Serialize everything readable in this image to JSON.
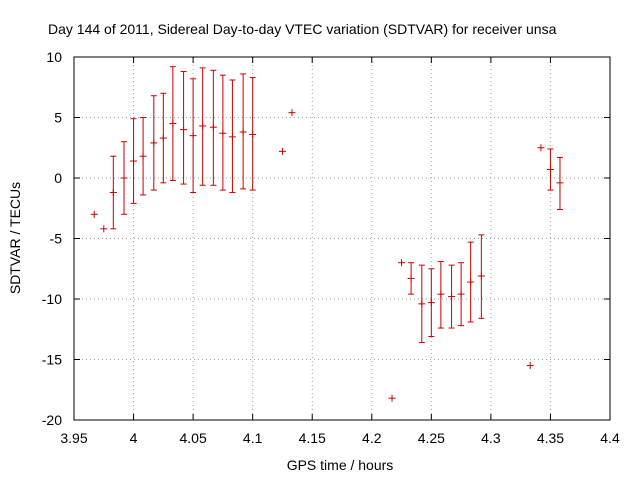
{
  "chart_data": {
    "type": "scatter",
    "title": "Day 144 of 2011, Sidereal Day-to-day VTEC variation (SDTVAR) for receiver unsa",
    "xlabel": "GPS time / hours",
    "ylabel": "SDTVAR / TECUs",
    "xlim": [
      3.95,
      4.4
    ],
    "ylim": [
      -20,
      10
    ],
    "x_ticks": [
      3.95,
      4,
      4.05,
      4.1,
      4.15,
      4.2,
      4.25,
      4.3,
      4.35,
      4.4
    ],
    "x_tick_labels": [
      "3.95",
      "4",
      "4.05",
      "4.1",
      "4.15",
      "4.2",
      "4.25",
      "4.3",
      "4.35",
      "4.4"
    ],
    "y_ticks": [
      -20,
      -15,
      -10,
      -5,
      0,
      5,
      10
    ],
    "y_tick_labels": [
      "-20",
      "-15",
      "-10",
      "-5",
      "0",
      "5",
      "10"
    ],
    "grid": true,
    "color": "#cc0000",
    "series": [
      {
        "name": "SDTVAR",
        "marker": "+",
        "points": [
          {
            "x": 3.967,
            "y": -3.0
          },
          {
            "x": 3.975,
            "y": -4.2
          },
          {
            "x": 3.983,
            "y": -1.2,
            "ylow": -4.2,
            "yhigh": 1.8
          },
          {
            "x": 3.992,
            "y": 0.0,
            "ylow": -3.0,
            "yhigh": 3.0
          },
          {
            "x": 4.0,
            "y": 1.4,
            "ylow": -2.1,
            "yhigh": 4.9
          },
          {
            "x": 4.008,
            "y": 1.8,
            "ylow": -1.4,
            "yhigh": 5.0
          },
          {
            "x": 4.017,
            "y": 2.9,
            "ylow": -1.0,
            "yhigh": 6.8
          },
          {
            "x": 4.025,
            "y": 3.3,
            "ylow": -0.4,
            "yhigh": 7.0
          },
          {
            "x": 4.033,
            "y": 4.5,
            "ylow": -0.2,
            "yhigh": 9.2
          },
          {
            "x": 4.042,
            "y": 4.0,
            "ylow": -0.5,
            "yhigh": 8.8
          },
          {
            "x": 4.05,
            "y": 3.5,
            "ylow": -1.2,
            "yhigh": 8.2
          },
          {
            "x": 4.058,
            "y": 4.3,
            "ylow": -0.6,
            "yhigh": 9.1
          },
          {
            "x": 4.067,
            "y": 4.2,
            "ylow": -0.6,
            "yhigh": 8.9
          },
          {
            "x": 4.075,
            "y": 3.7,
            "ylow": -1.0,
            "yhigh": 8.5
          },
          {
            "x": 4.083,
            "y": 3.4,
            "ylow": -1.2,
            "yhigh": 8.1
          },
          {
            "x": 4.092,
            "y": 3.8,
            "ylow": -0.9,
            "yhigh": 8.6
          },
          {
            "x": 4.1,
            "y": 3.6,
            "ylow": -1.0,
            "yhigh": 8.3
          },
          {
            "x": 4.125,
            "y": 2.2
          },
          {
            "x": 4.133,
            "y": 5.4
          },
          {
            "x": 4.217,
            "y": -18.2
          },
          {
            "x": 4.225,
            "y": -7.0
          },
          {
            "x": 4.233,
            "y": -8.3,
            "ylow": -9.6,
            "yhigh": -7.0
          },
          {
            "x": 4.242,
            "y": -10.4,
            "ylow": -13.6,
            "yhigh": -7.2
          },
          {
            "x": 4.25,
            "y": -10.3,
            "ylow": -13.1,
            "yhigh": -7.5
          },
          {
            "x": 4.258,
            "y": -9.6,
            "ylow": -12.4,
            "yhigh": -6.9
          },
          {
            "x": 4.267,
            "y": -9.8,
            "ylow": -12.4,
            "yhigh": -7.2
          },
          {
            "x": 4.275,
            "y": -9.6,
            "ylow": -12.2,
            "yhigh": -7.0
          },
          {
            "x": 4.283,
            "y": -8.6,
            "ylow": -11.9,
            "yhigh": -5.3
          },
          {
            "x": 4.292,
            "y": -8.1,
            "ylow": -11.6,
            "yhigh": -4.7
          },
          {
            "x": 4.333,
            "y": -15.5
          },
          {
            "x": 4.342,
            "y": 2.5
          },
          {
            "x": 4.35,
            "y": 0.7,
            "ylow": -1.0,
            "yhigh": 2.4
          },
          {
            "x": 4.358,
            "y": -0.4,
            "ylow": -2.6,
            "yhigh": 1.7
          }
        ]
      }
    ]
  }
}
